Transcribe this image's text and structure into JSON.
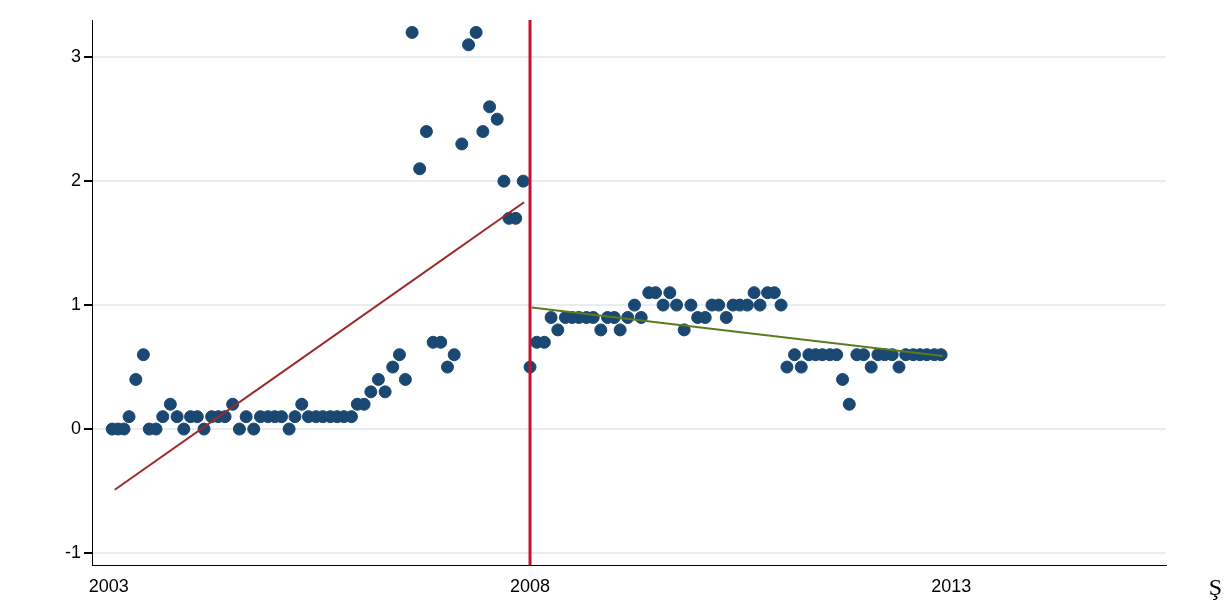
{
  "chart_data": {
    "type": "scatter",
    "xlim": [
      2002.8,
      2015.55
    ],
    "ylim": [
      -1.1,
      3.3
    ],
    "xticks": [
      2003,
      2008,
      2013
    ],
    "yticks": [
      -1,
      0,
      1,
      2,
      3
    ],
    "grid": "y",
    "legend": false,
    "series": [
      {
        "marker": "circle",
        "color": "#1a4872",
        "x": [
          2003.04,
          2003.11,
          2003.18,
          2003.24,
          2003.32,
          2003.41,
          2003.48,
          2003.56,
          2003.64,
          2003.73,
          2003.81,
          2003.89,
          2003.97,
          2004.05,
          2004.13,
          2004.22,
          2004.3,
          2004.38,
          2004.47,
          2004.55,
          2004.63,
          2004.72,
          2004.8,
          2004.89,
          2004.97,
          2005.05,
          2005.14,
          2005.21,
          2005.29,
          2005.37,
          2005.46,
          2005.54,
          2005.63,
          2005.71,
          2005.79,
          2005.88,
          2005.95,
          2006.03,
          2006.11,
          2006.2,
          2006.28,
          2006.37,
          2006.45,
          2006.52,
          2006.6,
          2006.69,
          2006.77,
          2006.85,
          2006.94,
          2007.02,
          2007.1,
          2007.19,
          2007.27,
          2007.36,
          2007.44,
          2007.52,
          2007.61,
          2007.69,
          2007.75,
          2007.83,
          2007.92,
          2008.0,
          2008.08,
          2008.17,
          2008.25,
          2008.33,
          2008.42,
          2008.5,
          2008.58,
          2008.67,
          2008.75,
          2008.84,
          2008.92,
          2009.0,
          2009.07,
          2009.16,
          2009.24,
          2009.32,
          2009.41,
          2009.49,
          2009.58,
          2009.66,
          2009.74,
          2009.83,
          2009.91,
          2009.99,
          2010.08,
          2010.16,
          2010.24,
          2010.33,
          2010.41,
          2010.49,
          2010.58,
          2010.66,
          2010.73,
          2010.82,
          2010.9,
          2010.98,
          2011.05,
          2011.14,
          2011.22,
          2011.31,
          2011.39,
          2011.47,
          2011.56,
          2011.64,
          2011.71,
          2011.79,
          2011.88,
          2011.96,
          2012.05,
          2012.13,
          2012.21,
          2012.3,
          2012.38,
          2012.46,
          2012.55,
          2012.63,
          2012.71,
          2012.8,
          2012.88
        ],
        "values": [
          0,
          0,
          0,
          0.1,
          0.4,
          0.6,
          0,
          0,
          0.1,
          0.2,
          0.1,
          0,
          0.1,
          0.1,
          0,
          0.1,
          0.1,
          0.1,
          0.2,
          0,
          0.1,
          0,
          0.1,
          0.1,
          0.1,
          0.1,
          0,
          0.1,
          0.2,
          0.1,
          0.1,
          0.1,
          0.1,
          0.1,
          0.1,
          0.1,
          0.2,
          0.2,
          0.3,
          0.4,
          0.3,
          0.5,
          0.6,
          0.4,
          3.2,
          2.1,
          2.4,
          0.7,
          0.7,
          0.5,
          0.6,
          2.3,
          3.1,
          3.2,
          2.4,
          2.6,
          2.5,
          2.0,
          1.7,
          1.7,
          2.0,
          0.5,
          0.7,
          0.7,
          0.9,
          0.8,
          0.9,
          0.9,
          0.9,
          0.9,
          0.9,
          0.8,
          0.9,
          0.9,
          0.8,
          0.9,
          1.0,
          0.9,
          1.1,
          1.1,
          1.0,
          1.1,
          1.0,
          0.8,
          1.0,
          0.9,
          0.9,
          1.0,
          1.0,
          0.9,
          1.0,
          1.0,
          1.0,
          1.1,
          1.0,
          1.1,
          1.1,
          1.0,
          0.5,
          0.6,
          0.5,
          0.6,
          0.6,
          0.6,
          0.6,
          0.6,
          0.4,
          0.2,
          0.6,
          0.6,
          0.5,
          0.6,
          0.6,
          0.6,
          0.5,
          0.6,
          0.6,
          0.6,
          0.6,
          0.6,
          0.6
        ]
      },
      {
        "type": "line",
        "color": "#9b2b2b",
        "x": [
          2003.07,
          2007.93
        ],
        "values": [
          -0.49,
          1.83
        ]
      },
      {
        "type": "line",
        "color": "#5b7a1e",
        "x": [
          2008.02,
          2012.9
        ],
        "values": [
          0.98,
          0.59
        ]
      }
    ],
    "ref_lines": [
      {
        "axis": "x",
        "value": 2008,
        "color": "#c8102e"
      }
    ],
    "annotations": [
      "Ş"
    ]
  }
}
